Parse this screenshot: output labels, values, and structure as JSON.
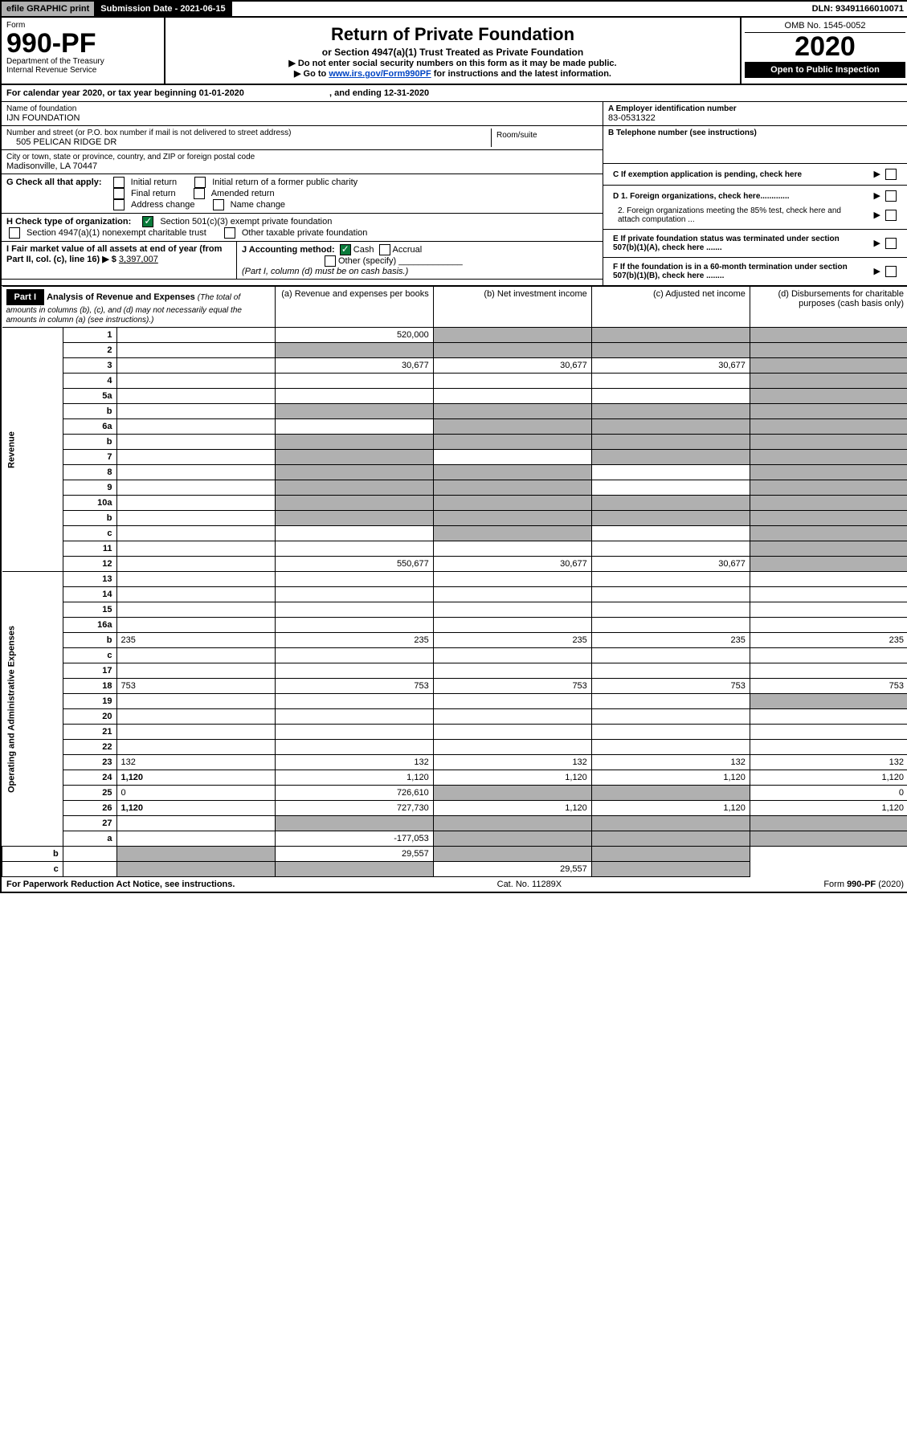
{
  "top": {
    "efile": "efile GRAPHIC print",
    "subdate_label": "Submission Date - 2021-06-15",
    "dln": "DLN: 93491166010071"
  },
  "header": {
    "form_label": "Form",
    "form_num": "990-PF",
    "dept1": "Department of the Treasury",
    "dept2": "Internal Revenue Service",
    "title": "Return of Private Foundation",
    "subtitle": "or Section 4947(a)(1) Trust Treated as Private Foundation",
    "note1": "▶ Do not enter social security numbers on this form as it may be made public.",
    "note2_pre": "▶ Go to ",
    "note2_link": "www.irs.gov/Form990PF",
    "note2_post": " for instructions and the latest information.",
    "omb": "OMB No. 1545-0052",
    "year": "2020",
    "open": "Open to Public Inspection"
  },
  "period": {
    "text_pre": "For calendar year 2020, or tax year beginning 01-01-2020",
    "text_post": ", and ending 12-31-2020"
  },
  "info": {
    "name_label": "Name of foundation",
    "name": "IJN FOUNDATION",
    "addr_label": "Number and street (or P.O. box number if mail is not delivered to street address)",
    "addr": "505 PELICAN RIDGE DR",
    "room_label": "Room/suite",
    "city_label": "City or town, state or province, country, and ZIP or foreign postal code",
    "city": "Madisonville, LA  70447",
    "ein_label": "A Employer identification number",
    "ein": "83-0531322",
    "phone_label": "B Telephone number (see instructions)",
    "c_label": "C If exemption application is pending, check here",
    "d1": "D 1. Foreign organizations, check here.............",
    "d2": "2. Foreign organizations meeting the 85% test, check here and attach computation ...",
    "e_label": "E  If private foundation status was terminated under section 507(b)(1)(A), check here .......",
    "f_label": "F  If the foundation is in a 60-month termination under section 507(b)(1)(B), check here ........"
  },
  "checks": {
    "g_label": "G Check all that apply:",
    "initial": "Initial return",
    "initial_former": "Initial return of a former public charity",
    "final": "Final return",
    "amended": "Amended return",
    "addr_change": "Address change",
    "name_change": "Name change",
    "h_label": "H Check type of organization:",
    "h_501c3": "Section 501(c)(3) exempt private foundation",
    "h_4947": "Section 4947(a)(1) nonexempt charitable trust",
    "h_other": "Other taxable private foundation",
    "i_label": "I Fair market value of all assets at end of year (from Part II, col. (c), line 16) ▶ $",
    "i_value": "3,397,007",
    "j_label": "J Accounting method:",
    "j_cash": "Cash",
    "j_accrual": "Accrual",
    "j_other": "Other (specify)",
    "j_note": "(Part I, column (d) must be on cash basis.)"
  },
  "part1": {
    "label": "Part I",
    "title": "Analysis of Revenue and Expenses",
    "title_note": "(The total of amounts in columns (b), (c), and (d) may not necessarily equal the amounts in column (a) (see instructions).)",
    "col_a": "(a)   Revenue and expenses per books",
    "col_b": "(b)  Net investment income",
    "col_c": "(c)  Adjusted net income",
    "col_d": "(d)  Disbursements for charitable purposes (cash basis only)"
  },
  "vlabels": {
    "revenue": "Revenue",
    "expenses": "Operating and Administrative Expenses"
  },
  "rows": [
    {
      "n": "1",
      "d": "",
      "a": "520,000",
      "b": "",
      "c": "",
      "bs": true,
      "cs": true,
      "ds": true
    },
    {
      "n": "2",
      "d": "",
      "a": "",
      "b": "",
      "c": "",
      "bs": true,
      "cs": true,
      "ds": true,
      "as": true
    },
    {
      "n": "3",
      "d": "",
      "a": "30,677",
      "b": "30,677",
      "c": "30,677",
      "ds": true
    },
    {
      "n": "4",
      "d": "",
      "a": "",
      "b": "",
      "c": "",
      "ds": true
    },
    {
      "n": "5a",
      "d": "",
      "a": "",
      "b": "",
      "c": "",
      "ds": true
    },
    {
      "n": "b",
      "d": "",
      "a": "",
      "b": "",
      "c": "",
      "as": true,
      "bs": true,
      "cs": true,
      "ds": true
    },
    {
      "n": "6a",
      "d": "",
      "a": "",
      "b": "",
      "c": "",
      "bs": true,
      "cs": true,
      "ds": true
    },
    {
      "n": "b",
      "d": "",
      "a": "",
      "b": "",
      "c": "",
      "as": true,
      "bs": true,
      "cs": true,
      "ds": true
    },
    {
      "n": "7",
      "d": "",
      "a": "",
      "b": "",
      "c": "",
      "as": true,
      "cs": true,
      "ds": true
    },
    {
      "n": "8",
      "d": "",
      "a": "",
      "b": "",
      "c": "",
      "as": true,
      "bs": true,
      "ds": true
    },
    {
      "n": "9",
      "d": "",
      "a": "",
      "b": "",
      "c": "",
      "as": true,
      "bs": true,
      "ds": true
    },
    {
      "n": "10a",
      "d": "",
      "a": "",
      "b": "",
      "c": "",
      "as": true,
      "bs": true,
      "cs": true,
      "ds": true
    },
    {
      "n": "b",
      "d": "",
      "a": "",
      "b": "",
      "c": "",
      "as": true,
      "bs": true,
      "cs": true,
      "ds": true
    },
    {
      "n": "c",
      "d": "",
      "a": "",
      "b": "",
      "c": "",
      "bs": true,
      "ds": true
    },
    {
      "n": "11",
      "d": "",
      "a": "",
      "b": "",
      "c": "",
      "ds": true
    },
    {
      "n": "12",
      "d": "",
      "a": "550,677",
      "b": "30,677",
      "c": "30,677",
      "bold": true,
      "ds": true
    },
    {
      "n": "13",
      "d": "",
      "a": "",
      "b": "",
      "c": ""
    },
    {
      "n": "14",
      "d": "",
      "a": "",
      "b": "",
      "c": ""
    },
    {
      "n": "15",
      "d": "",
      "a": "",
      "b": "",
      "c": ""
    },
    {
      "n": "16a",
      "d": "",
      "a": "",
      "b": "",
      "c": ""
    },
    {
      "n": "b",
      "d": "235",
      "a": "235",
      "b": "235",
      "c": "235"
    },
    {
      "n": "c",
      "d": "",
      "a": "",
      "b": "",
      "c": ""
    },
    {
      "n": "17",
      "d": "",
      "a": "",
      "b": "",
      "c": ""
    },
    {
      "n": "18",
      "d": "753",
      "a": "753",
      "b": "753",
      "c": "753"
    },
    {
      "n": "19",
      "d": "",
      "a": "",
      "b": "",
      "c": "",
      "ds": true
    },
    {
      "n": "20",
      "d": "",
      "a": "",
      "b": "",
      "c": ""
    },
    {
      "n": "21",
      "d": "",
      "a": "",
      "b": "",
      "c": ""
    },
    {
      "n": "22",
      "d": "",
      "a": "",
      "b": "",
      "c": ""
    },
    {
      "n": "23",
      "d": "132",
      "a": "132",
      "b": "132",
      "c": "132"
    },
    {
      "n": "24",
      "d": "1,120",
      "a": "1,120",
      "b": "1,120",
      "c": "1,120",
      "bold": true
    },
    {
      "n": "25",
      "d": "0",
      "a": "726,610",
      "b": "",
      "c": "",
      "bs": true,
      "cs": true
    },
    {
      "n": "26",
      "d": "1,120",
      "a": "727,730",
      "b": "1,120",
      "c": "1,120",
      "bold": true
    },
    {
      "n": "27",
      "d": "",
      "a": "",
      "b": "",
      "c": "",
      "as": true,
      "bs": true,
      "cs": true,
      "ds": true
    },
    {
      "n": "a",
      "d": "",
      "a": "-177,053",
      "b": "",
      "c": "",
      "bold": true,
      "bs": true,
      "cs": true,
      "ds": true
    },
    {
      "n": "b",
      "d": "",
      "a": "",
      "b": "29,557",
      "c": "",
      "bold": true,
      "as": true,
      "cs": true,
      "ds": true
    },
    {
      "n": "c",
      "d": "",
      "a": "",
      "b": "",
      "c": "29,557",
      "bold": true,
      "as": true,
      "bs": true,
      "ds": true
    }
  ],
  "footer": {
    "left": "For Paperwork Reduction Act Notice, see instructions.",
    "mid": "Cat. No. 11289X",
    "right": "Form 990-PF (2020)"
  }
}
